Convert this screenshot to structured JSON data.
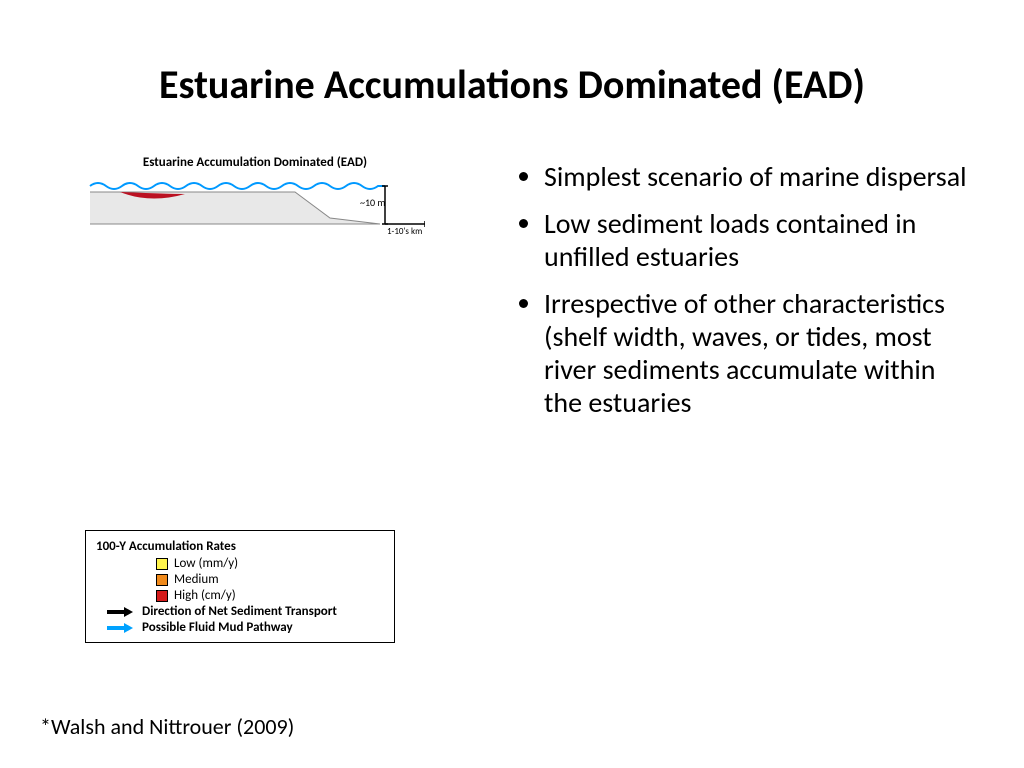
{
  "title": "Estuarine Accumulations Dominated (EAD)",
  "diagram": {
    "title": "Estuarine Accumulation Dominated (EAD)",
    "depth_label": "~10 m",
    "scale_label": "1-10's km",
    "colors": {
      "water_wave": "#0099ff",
      "shelf_fill": "#e8e8e8",
      "shelf_stroke": "#888888",
      "deposit": "#bb1122",
      "text": "#000000"
    }
  },
  "legend": {
    "title": "100-Y Accumulation Rates",
    "rates": [
      {
        "label": "Low (mm/y)",
        "color": "#fff44d"
      },
      {
        "label": "Medium",
        "color": "#f08a1c"
      },
      {
        "label": "High (cm/y)",
        "color": "#d41b1b"
      }
    ],
    "arrows": [
      {
        "label": "Direction of Net Sediment Transport",
        "color": "#000000"
      },
      {
        "label": "Possible Fluid Mud Pathway",
        "color": "#00a2ff"
      }
    ]
  },
  "bullets": [
    "Simplest scenario of marine dispersal",
    "Low sediment loads contained in unfilled estuaries",
    "Irrespective of other characteristics (shelf width, waves, or tides, most river sediments accumulate within the estuaries"
  ],
  "citation": "*Walsh and Nittrouer (2009)"
}
